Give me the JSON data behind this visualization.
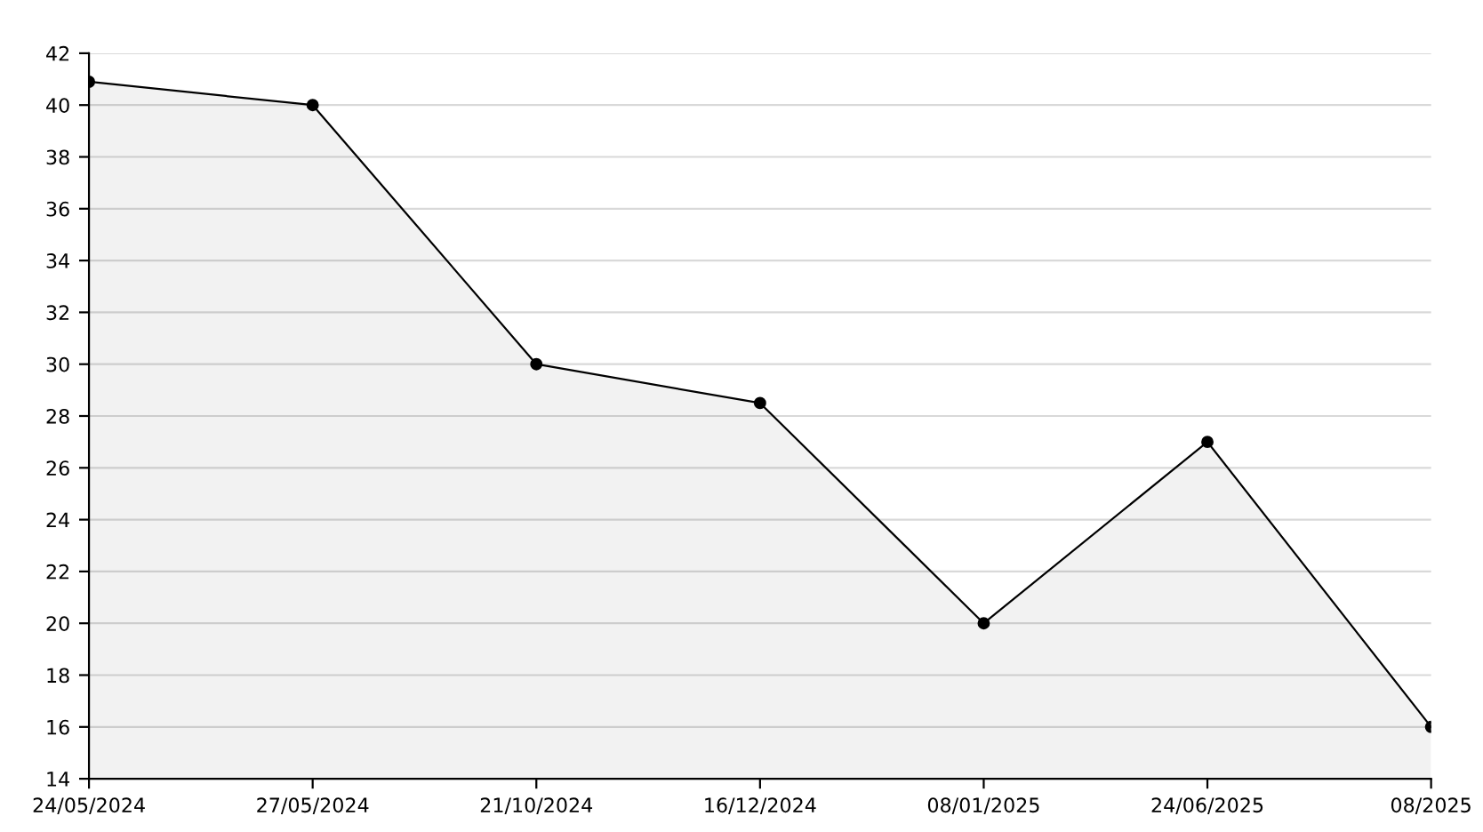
{
  "chart_data": {
    "type": "area",
    "categories": [
      "24/05/2024",
      "27/05/2024",
      "21/10/2024",
      "16/12/2024",
      "08/01/2025",
      "24/06/2025",
      "08/2025"
    ],
    "series": [
      {
        "color": "#000000",
        "values": [
          40.9,
          40,
          30,
          28.5,
          20,
          27,
          16
        ]
      }
    ],
    "ylim": [
      14,
      42
    ],
    "yticks": [
      14,
      16,
      18,
      20,
      22,
      24,
      26,
      28,
      30,
      32,
      34,
      36,
      38,
      40,
      42
    ],
    "grid": "y",
    "marker": "circle",
    "line_style": "solid",
    "legend": false
  }
}
